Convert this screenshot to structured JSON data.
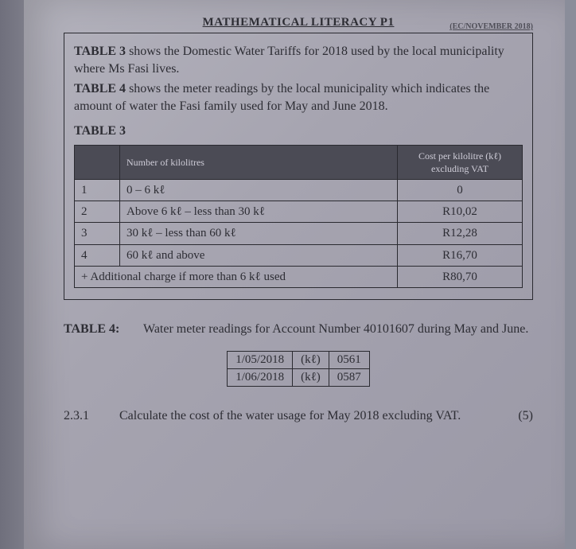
{
  "header": {
    "title": "MATHEMATICAL LITERACY P1",
    "exam_tag": "(EC/NOVEMBER 2018)"
  },
  "intro": {
    "p1a": "TABLE 3",
    "p1b": " shows the Domestic Water Tariffs for 2018 used by the local municipality where Ms Fasi lives.",
    "p2a": "TABLE 4",
    "p2b": " shows the meter readings by the local municipality which indicates the amount of water the Fasi family used for May and June 2018.",
    "t3_label": "TABLE 3"
  },
  "table3": {
    "head_col1": "Number of kilolitres",
    "head_col2": "Cost per kilolitre (kℓ) excluding VAT",
    "rows": [
      {
        "step": "1",
        "range": "0 – 6 kℓ",
        "cost": "0"
      },
      {
        "step": "2",
        "range": "Above 6 kℓ – less than 30 kℓ",
        "cost": "R10,02"
      },
      {
        "step": "3",
        "range": "30 kℓ – less than 60 kℓ",
        "cost": "R12,28"
      },
      {
        "step": "4",
        "range": "60 kℓ and above",
        "cost": "R16,70"
      }
    ],
    "additional_label": "+ Additional charge if more than 6 kℓ used",
    "additional_cost": "R80,70"
  },
  "table4": {
    "label": "TABLE 4:",
    "caption": "Water meter readings for Account Number 40101607 during May and June.",
    "unit": "(kℓ)",
    "rows": [
      {
        "date": "1/05/2018",
        "reading": "0561"
      },
      {
        "date": "1/06/2018",
        "reading": "0587"
      }
    ]
  },
  "question": {
    "number": "2.3.1",
    "text": "Calculate the cost of the water usage for May 2018 excluding VAT.",
    "marks": "(5)"
  },
  "style": {
    "page_bg": "#a6a4b0",
    "border_color": "#2a2a30",
    "header_bg": "#4b4b55"
  }
}
